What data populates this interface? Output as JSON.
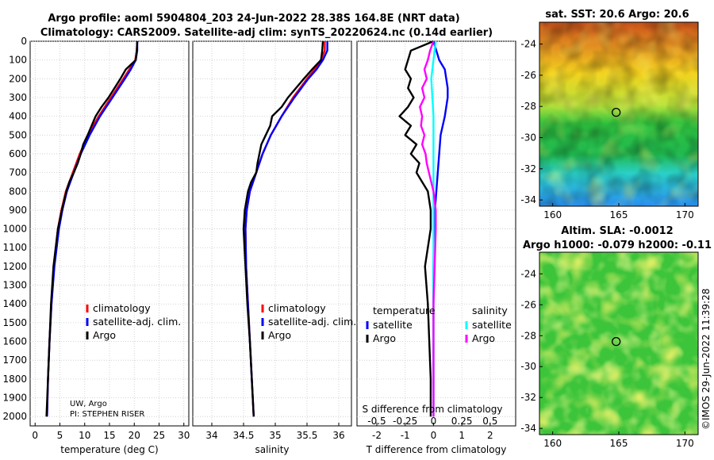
{
  "title": {
    "line1": "Argo profile: aoml 5904804_203 24-Jun-2022 28.38S 164.8E (NRT data)",
    "line2": "Climatology: CARS2009. Satellite-adj clim: synTS_20220624.nc (0.14d earlier)"
  },
  "credit": {
    "line1": "UW, Argo",
    "line2": "PI: STEPHEN RISER"
  },
  "copyright": "©IMOS 29-Jun-2022 11:39:28",
  "colors": {
    "climatology": "#ff0000",
    "satellite_adj": "#0000ff",
    "argo": "#000000",
    "satellite_s": "#00ffff",
    "argo_s": "#ff00ff"
  },
  "chart_data": [
    {
      "type": "line",
      "id": "temperature",
      "xlabel": "temperature (deg C)",
      "ylabel": "",
      "xlim": [
        -1,
        31
      ],
      "ylim": [
        2050,
        0
      ],
      "xticks": [
        "0",
        "5",
        "10",
        "15",
        "20",
        "25",
        "30"
      ],
      "yticks": [
        "0",
        "100",
        "200",
        "300",
        "400",
        "500",
        "600",
        "700",
        "800",
        "900",
        "1000",
        "1100",
        "1200",
        "1300",
        "1400",
        "1500",
        "1600",
        "1700",
        "1800",
        "1900",
        "2000"
      ],
      "legend": [
        "climatology",
        "satellite-adj. clim.",
        "Argo"
      ],
      "legend_position": "lower-right",
      "grid": true,
      "series": [
        {
          "name": "climatology",
          "color": "#ff0000",
          "depth": [
            0,
            50,
            100,
            150,
            200,
            300,
            400,
            500,
            600,
            700,
            800,
            900,
            1000,
            1200,
            1400,
            1600,
            1800,
            2000
          ],
          "values": [
            20.6,
            20.5,
            20.2,
            19.0,
            17.8,
            15.3,
            12.8,
            10.7,
            9.0,
            7.6,
            6.2,
            5.3,
            4.6,
            3.8,
            3.3,
            2.9,
            2.6,
            2.4
          ]
        },
        {
          "name": "satellite-adj. clim.",
          "color": "#0000ff",
          "depth": [
            0,
            50,
            100,
            150,
            200,
            300,
            400,
            500,
            600,
            700,
            800,
            900,
            1000,
            1200,
            1400,
            1600,
            1800,
            2000
          ],
          "values": [
            20.6,
            20.6,
            20.3,
            19.3,
            18.1,
            15.6,
            13.1,
            11.0,
            9.2,
            7.8,
            6.4,
            5.5,
            4.8,
            3.9,
            3.3,
            2.9,
            2.6,
            2.4
          ]
        },
        {
          "name": "Argo",
          "color": "#000000",
          "depth": [
            0,
            50,
            100,
            150,
            200,
            250,
            300,
            350,
            400,
            450,
            500,
            550,
            600,
            650,
            700,
            750,
            800,
            900,
            1000,
            1200,
            1400,
            1600,
            1800,
            2000
          ],
          "values": [
            20.6,
            20.5,
            20.3,
            18.3,
            17.2,
            16.0,
            14.8,
            13.4,
            12.2,
            11.4,
            10.6,
            9.7,
            9.2,
            8.6,
            7.8,
            6.9,
            6.3,
            5.4,
            4.6,
            3.7,
            3.2,
            2.9,
            2.6,
            2.3
          ]
        }
      ]
    },
    {
      "type": "line",
      "id": "salinity",
      "xlabel": "salinity",
      "xlim": [
        33.7,
        36.2
      ],
      "ylim": [
        2050,
        0
      ],
      "xticks": [
        "34",
        "34.5",
        "35",
        "35.5",
        "36"
      ],
      "legend": [
        "climatology",
        "satellite-adj. clim.",
        "Argo"
      ],
      "legend_position": "lower-right",
      "grid": true,
      "series": [
        {
          "name": "climatology",
          "color": "#ff0000",
          "depth": [
            0,
            50,
            100,
            150,
            200,
            300,
            400,
            500,
            600,
            700,
            800,
            900,
            1000,
            1200,
            1400,
            1600,
            1800,
            2000
          ],
          "values": [
            35.78,
            35.78,
            35.72,
            35.62,
            35.5,
            35.28,
            35.1,
            34.93,
            34.8,
            34.7,
            34.6,
            34.55,
            34.53,
            34.54,
            34.57,
            34.6,
            34.63,
            34.66
          ]
        },
        {
          "name": "satellite-adj. clim.",
          "color": "#0000ff",
          "depth": [
            0,
            50,
            100,
            150,
            200,
            300,
            400,
            500,
            600,
            700,
            800,
            900,
            1000,
            1200,
            1400,
            1600,
            1800,
            2000
          ],
          "values": [
            35.82,
            35.82,
            35.75,
            35.65,
            35.52,
            35.3,
            35.1,
            34.93,
            34.8,
            34.7,
            34.6,
            34.55,
            34.53,
            34.54,
            34.57,
            34.6,
            34.63,
            34.66
          ]
        },
        {
          "name": "Argo",
          "color": "#000000",
          "depth": [
            0,
            50,
            100,
            150,
            200,
            300,
            350,
            400,
            450,
            500,
            550,
            600,
            650,
            700,
            750,
            800,
            900,
            1000,
            1200,
            1400,
            1600,
            1800,
            2000
          ],
          "values": [
            35.75,
            35.74,
            35.72,
            35.58,
            35.45,
            35.2,
            35.1,
            34.95,
            34.92,
            34.85,
            34.78,
            34.75,
            34.72,
            34.7,
            34.62,
            34.57,
            34.52,
            34.5,
            34.53,
            34.56,
            34.6,
            34.63,
            34.66
          ]
        }
      ]
    },
    {
      "type": "line",
      "id": "difference",
      "xlabel": "T difference from climatology",
      "xlabel_top": "S difference from climatology",
      "xlim": [
        -2.7,
        2.9
      ],
      "ylim": [
        2050,
        0
      ],
      "xticks": [
        "-2",
        "-1",
        "0",
        "1",
        "2"
      ],
      "xticks_top": [
        "-0.5",
        "-0.25",
        "0",
        "0.25",
        "0.5"
      ],
      "legend_t_title": "temperature",
      "legend_s_title": "salinity",
      "legend_t": [
        "satellite",
        "Argo"
      ],
      "legend_s": [
        "satellite",
        "Argo"
      ],
      "grid": true,
      "series": [
        {
          "name": "T satellite",
          "color": "#0000ff",
          "depth": [
            0,
            50,
            100,
            150,
            200,
            250,
            300,
            400,
            500,
            600,
            700,
            800,
            900,
            1000,
            1200,
            1400,
            1600,
            1800,
            2000
          ],
          "values": [
            0.0,
            0.1,
            0.2,
            0.4,
            0.45,
            0.5,
            0.5,
            0.4,
            0.25,
            0.2,
            0.15,
            0.1,
            0.05,
            0.02,
            0.0,
            0.0,
            0.0,
            0.0,
            0.0
          ]
        },
        {
          "name": "T Argo",
          "color": "#000000",
          "depth": [
            0,
            50,
            100,
            150,
            200,
            250,
            300,
            350,
            400,
            450,
            500,
            550,
            600,
            650,
            700,
            750,
            800,
            900,
            1000,
            1100,
            1200,
            1400,
            1600,
            1800,
            2000
          ],
          "values": [
            0.0,
            -0.8,
            -0.9,
            -1.0,
            -0.8,
            -0.9,
            -0.7,
            -0.9,
            -1.2,
            -0.8,
            -1.0,
            -0.6,
            -0.8,
            -0.5,
            -0.6,
            -0.4,
            -0.2,
            -0.1,
            -0.1,
            -0.2,
            -0.3,
            -0.2,
            -0.15,
            -0.1,
            -0.1
          ]
        },
        {
          "name": "S satellite",
          "color": "#00ffff",
          "depth": [
            0,
            100,
            200,
            300,
            400,
            500,
            600,
            700,
            800,
            900,
            1000,
            1200,
            1400,
            1600,
            1800,
            2000
          ],
          "values": [
            0.02,
            0.0,
            -0.02,
            -0.01,
            0.0,
            0.0,
            0.0,
            0.0,
            0.0,
            0.0,
            0.0,
            0.0,
            0.0,
            0.0,
            0.0,
            0.0
          ]
        },
        {
          "name": "S Argo",
          "color": "#ff00ff",
          "depth": [
            0,
            50,
            100,
            150,
            200,
            250,
            300,
            350,
            400,
            450,
            500,
            550,
            600,
            650,
            700,
            800,
            900,
            1000,
            1200,
            1400,
            1600,
            1800,
            2000
          ],
          "values": [
            0.0,
            -0.03,
            -0.05,
            -0.08,
            -0.06,
            -0.1,
            -0.08,
            -0.12,
            -0.1,
            -0.11,
            -0.08,
            -0.1,
            -0.07,
            -0.06,
            -0.04,
            0.0,
            0.02,
            0.02,
            0.01,
            0.0,
            0.0,
            0.0,
            0.0
          ]
        }
      ]
    },
    {
      "type": "heatmap",
      "id": "sst_map",
      "title": "sat. SST: 20.6 Argo: 20.6",
      "xticks": [
        "160",
        "165",
        "170"
      ],
      "yticks": [
        "-24",
        "-26",
        "-28",
        "-30",
        "-32",
        "-34"
      ],
      "xlim": [
        159,
        171
      ],
      "ylim": [
        -34.4,
        -22.6
      ],
      "marker": {
        "lon": 164.8,
        "lat": -28.38
      }
    },
    {
      "type": "heatmap",
      "id": "sla_map",
      "title": "Altim. SLA: -0.0012",
      "subtitle": "Argo h1000: -0.079 h2000: -0.11",
      "xticks": [
        "160",
        "165",
        "170"
      ],
      "yticks": [
        "-24",
        "-26",
        "-28",
        "-30",
        "-32",
        "-34"
      ],
      "xlim": [
        159,
        171
      ],
      "ylim": [
        -34.4,
        -22.6
      ],
      "marker": {
        "lon": 164.8,
        "lat": -28.38
      }
    }
  ]
}
